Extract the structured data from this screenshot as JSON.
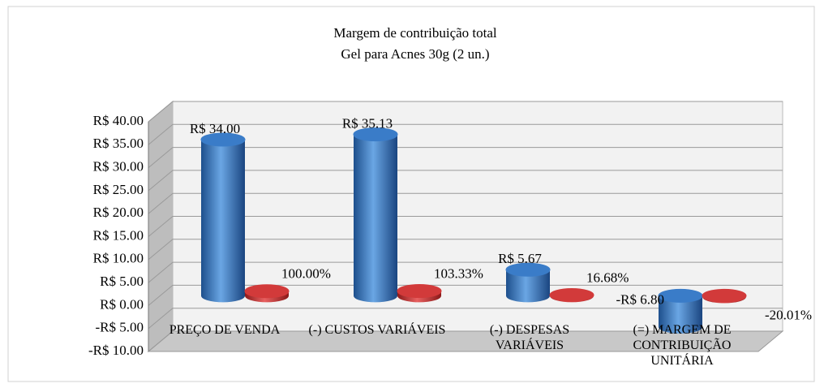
{
  "chart_data": {
    "type": "cylinder-bar",
    "title": "Margem de contribuição total",
    "subtitle": "Gel para Acnes 30g (2 un.)",
    "categories": [
      "PREÇO DE VENDA",
      "(-) CUSTOS VARIÁVEIS",
      "(-) DESPESAS VARIÁVEIS",
      "(=) MARGEM DE CONTRIBUIÇÃO UNITÁRIA"
    ],
    "series": [
      {
        "color": "#3a7cc8",
        "values": [
          34.0,
          35.13,
          5.67,
          -6.8
        ],
        "value_labels": [
          "R$ 34.00",
          "R$ 35.13",
          "R$ 5.67",
          "-R$ 6.80"
        ]
      },
      {
        "color": "#d23a3a",
        "values": [
          1.0,
          1.0333,
          0.1668,
          -0.2001
        ],
        "value_labels": [
          "100.00%",
          "103.33%",
          "16.68%",
          "-20.01%"
        ]
      }
    ],
    "ylim": [
      -10,
      40
    ],
    "yticks": [
      {
        "value": 40,
        "label": "R$ 40.00"
      },
      {
        "value": 35,
        "label": "R$ 35.00"
      },
      {
        "value": 30,
        "label": "R$ 30.00"
      },
      {
        "value": 25,
        "label": "R$ 25.00"
      },
      {
        "value": 20,
        "label": "R$ 20.00"
      },
      {
        "value": 15,
        "label": "R$ 15.00"
      },
      {
        "value": 10,
        "label": "R$ 10.00"
      },
      {
        "value": 5,
        "label": "R$ 5.00"
      },
      {
        "value": 0,
        "label": "R$ 0.00"
      },
      {
        "value": -5,
        "label": "-R$ 5.00"
      },
      {
        "value": -10,
        "label": "-R$ 10.00"
      }
    ],
    "grid": true
  }
}
